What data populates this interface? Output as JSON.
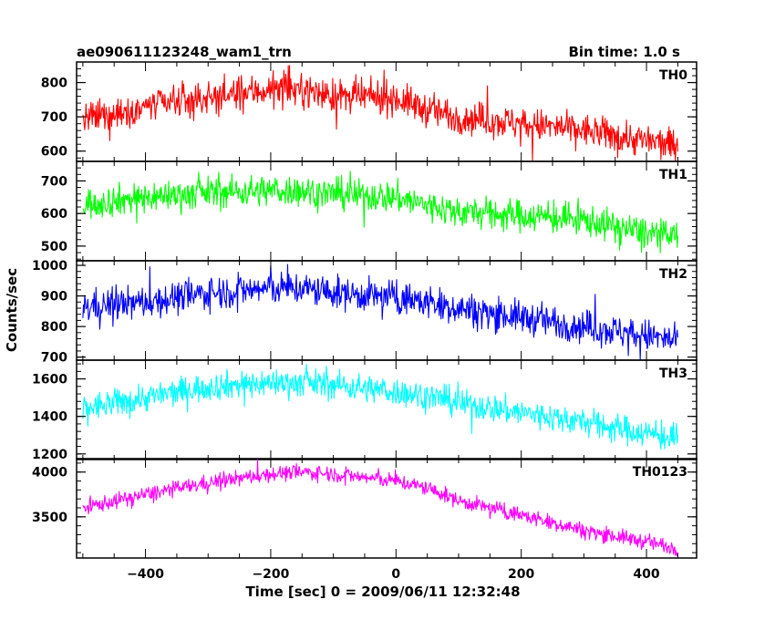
{
  "header": {
    "title_left": "ae090611123248_wam1_trn",
    "title_right": "Bin time: 1.0 s"
  },
  "axes": {
    "ylabel": "Counts/sec",
    "xlabel": "Time [sec] 0 = 2009/06/11 12:32:48"
  },
  "chart_data": {
    "type": "line",
    "title": "ae090611123248_wam1_trn",
    "xlabel": "Time [sec] 0 = 2009/06/11 12:32:48",
    "ylabel": "Counts/sec",
    "bin_time_s": 1.0,
    "xlim": [
      -510,
      480
    ],
    "xticks": [
      -400,
      -200,
      0,
      200,
      400
    ],
    "x_sample": [
      -500,
      -400,
      -300,
      -200,
      -150,
      -100,
      0,
      50,
      100,
      200,
      300,
      400,
      450
    ],
    "grid": false,
    "legend": "none",
    "panels": [
      {
        "name": "TH0",
        "color": "#ff0000",
        "ylim": [
          570,
          860
        ],
        "yticks": [
          600,
          700,
          800
        ],
        "mean": [
          690,
          730,
          755,
          780,
          780,
          760,
          755,
          720,
          700,
          680,
          660,
          630,
          615
        ],
        "noise": 45
      },
      {
        "name": "TH1",
        "color": "#00ff00",
        "ylim": [
          455,
          760
        ],
        "yticks": [
          500,
          600,
          700
        ],
        "mean": [
          630,
          650,
          665,
          670,
          670,
          660,
          650,
          625,
          605,
          595,
          580,
          540,
          525
        ],
        "noise": 45
      },
      {
        "name": "TH2",
        "color": "#0000ff",
        "ylim": [
          690,
          1015
        ],
        "yticks": [
          700,
          800,
          900,
          1000
        ],
        "mean": [
          865,
          880,
          910,
          925,
          925,
          910,
          895,
          880,
          860,
          830,
          800,
          770,
          750
        ],
        "noise": 50
      },
      {
        "name": "TH3",
        "color": "#00ffff",
        "ylim": [
          1170,
          1700
        ],
        "yticks": [
          1200,
          1400,
          1600
        ],
        "mean": [
          1440,
          1500,
          1560,
          1580,
          1580,
          1570,
          1530,
          1510,
          1470,
          1420,
          1370,
          1310,
          1280
        ],
        "noise": 70
      },
      {
        "name": "TH0123",
        "color": "#ff00ff",
        "ylim": [
          3040,
          4150
        ],
        "yticks": [
          3500,
          4000
        ],
        "mean": [
          3600,
          3750,
          3880,
          3980,
          4000,
          3980,
          3900,
          3820,
          3680,
          3520,
          3350,
          3220,
          3150
        ],
        "noise": 80
      }
    ]
  }
}
